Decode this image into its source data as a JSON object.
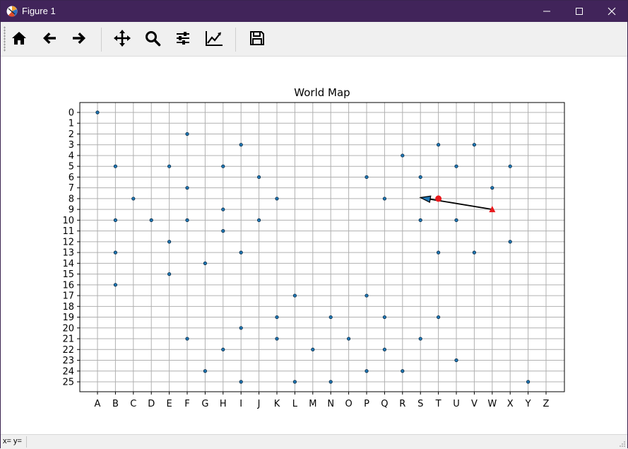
{
  "window": {
    "title": "Figure 1"
  },
  "toolbar": {
    "buttons": [
      {
        "name": "home-icon",
        "label": "Home"
      },
      {
        "name": "back-icon",
        "label": "Back"
      },
      {
        "name": "forward-icon",
        "label": "Forward"
      },
      {
        "name": "pan-icon",
        "label": "Pan"
      },
      {
        "name": "zoom-icon",
        "label": "Zoom"
      },
      {
        "name": "configure-subplots-icon",
        "label": "Subplots"
      },
      {
        "name": "edit-axis-icon",
        "label": "Customize"
      },
      {
        "name": "save-icon",
        "label": "Save"
      }
    ]
  },
  "status": {
    "coords": "x= y="
  },
  "chart_data": {
    "type": "scatter",
    "title": "World Map",
    "xlabel": "",
    "ylabel": "",
    "x_categories": [
      "A",
      "B",
      "C",
      "D",
      "E",
      "F",
      "G",
      "H",
      "I",
      "J",
      "K",
      "L",
      "M",
      "N",
      "O",
      "P",
      "Q",
      "R",
      "S",
      "T",
      "U",
      "V",
      "W",
      "X",
      "Y",
      "Z"
    ],
    "y_ticks": [
      "0",
      "1",
      "2",
      "3",
      "4",
      "5",
      "6",
      "7",
      "8",
      "9",
      "10",
      "11",
      "12",
      "13",
      "14",
      "15",
      "16",
      "17",
      "18",
      "19",
      "20",
      "21",
      "22",
      "23",
      "24",
      "25"
    ],
    "y_inverted": true,
    "grid": true,
    "points": [
      [
        "A",
        0
      ],
      [
        "F",
        2
      ],
      [
        "I",
        3
      ],
      [
        "T",
        3
      ],
      [
        "V",
        3
      ],
      [
        "R",
        4
      ],
      [
        "B",
        5
      ],
      [
        "E",
        5
      ],
      [
        "H",
        5
      ],
      [
        "U",
        5
      ],
      [
        "X",
        5
      ],
      [
        "J",
        6
      ],
      [
        "P",
        6
      ],
      [
        "S",
        6
      ],
      [
        "F",
        7
      ],
      [
        "W",
        7
      ],
      [
        "C",
        8
      ],
      [
        "K",
        8
      ],
      [
        "Q",
        8
      ],
      [
        "H",
        9
      ],
      [
        "B",
        10
      ],
      [
        "D",
        10
      ],
      [
        "F",
        10
      ],
      [
        "J",
        10
      ],
      [
        "S",
        10
      ],
      [
        "U",
        10
      ],
      [
        "H",
        11
      ],
      [
        "E",
        12
      ],
      [
        "X",
        12
      ],
      [
        "B",
        13
      ],
      [
        "I",
        13
      ],
      [
        "T",
        13
      ],
      [
        "V",
        13
      ],
      [
        "G",
        14
      ],
      [
        "E",
        15
      ],
      [
        "B",
        16
      ],
      [
        "L",
        17
      ],
      [
        "P",
        17
      ],
      [
        "K",
        19
      ],
      [
        "N",
        19
      ],
      [
        "Q",
        19
      ],
      [
        "T",
        19
      ],
      [
        "I",
        20
      ],
      [
        "F",
        21
      ],
      [
        "K",
        21
      ],
      [
        "O",
        21
      ],
      [
        "S",
        21
      ],
      [
        "H",
        22
      ],
      [
        "M",
        22
      ],
      [
        "Q",
        22
      ],
      [
        "U",
        23
      ],
      [
        "G",
        24
      ],
      [
        "P",
        24
      ],
      [
        "R",
        24
      ],
      [
        "I",
        25
      ],
      [
        "L",
        25
      ],
      [
        "N",
        25
      ],
      [
        "Y",
        25
      ]
    ],
    "highlights": [
      {
        "name": "current-marker",
        "x": "T",
        "y": 8,
        "marker": "circle",
        "color": "#e8191c"
      },
      {
        "name": "target-marker",
        "x": "W",
        "y": 9,
        "marker": "triangle",
        "color": "#e8191c"
      }
    ],
    "arrow": {
      "from": [
        "W",
        9
      ],
      "to": [
        "S",
        7.9
      ],
      "color": "#000000"
    },
    "point_color": "#1f77b4"
  }
}
